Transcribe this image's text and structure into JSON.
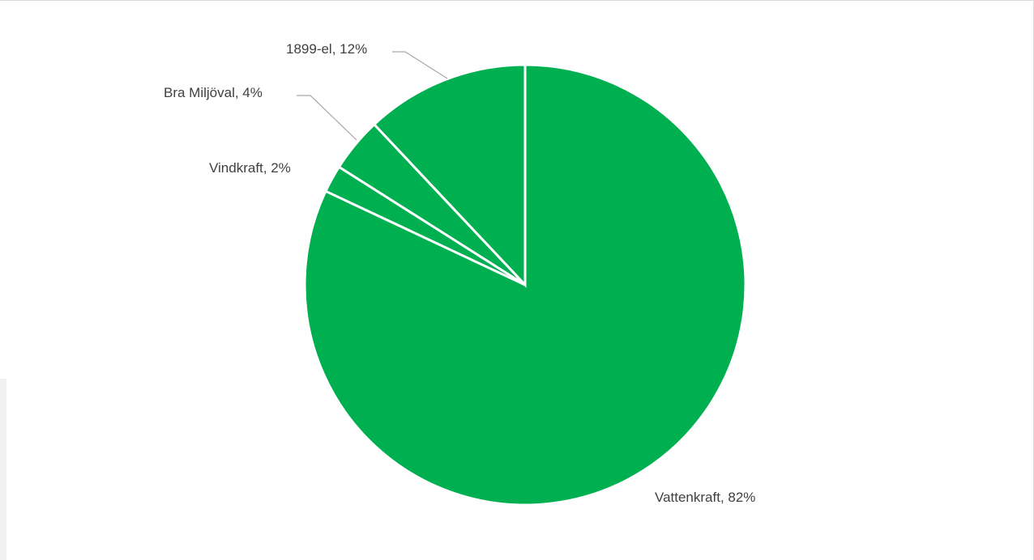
{
  "chart_data": {
    "type": "pie",
    "title": "",
    "slices": [
      {
        "name": "Vattenkraft",
        "value": 82,
        "label": "Vattenkraft, 82%"
      },
      {
        "name": "Vindkraft",
        "value": 2,
        "label": "Vindkraft, 2%"
      },
      {
        "name": "Bra Miljöval",
        "value": 4,
        "label": "Bra Miljöval, 4%"
      },
      {
        "name": "1899-el",
        "value": 12,
        "label": "1899-el, 12%"
      }
    ],
    "colors": {
      "slice": "#00b050",
      "slice_border": "#ffffff",
      "leader_line": "#a6a6a6",
      "label_text": "#404040"
    },
    "legend": "none",
    "start_angle": "12 o'clock",
    "direction": "clockwise"
  }
}
